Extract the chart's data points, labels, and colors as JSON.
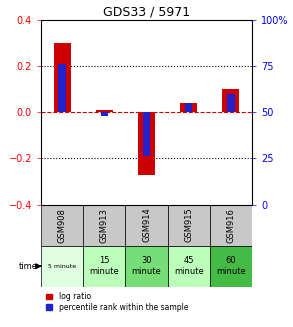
{
  "title": "GDS33 / 5971",
  "categories": [
    "GSM908",
    "GSM913",
    "GSM914",
    "GSM915",
    "GSM916"
  ],
  "time_labels_top": [
    "5 minute",
    "15\nminute",
    "30\nminute",
    "45\nminute",
    "60\nminute"
  ],
  "time_labels_small": [
    true,
    false,
    false,
    false,
    false
  ],
  "log_ratios": [
    0.3,
    0.01,
    -0.27,
    0.04,
    0.1
  ],
  "percentile_ranks": [
    76,
    48,
    26,
    55,
    60
  ],
  "bar_width": 0.4,
  "ylim_left": [
    -0.4,
    0.4
  ],
  "ylim_right": [
    0,
    100
  ],
  "yticks_left": [
    -0.4,
    -0.2,
    0.0,
    0.2,
    0.4
  ],
  "yticks_right": [
    0,
    25,
    50,
    75,
    100
  ],
  "bar_color_red": "#cc0000",
  "bar_color_blue": "#2222cc",
  "zero_line_color": "#cc0000",
  "dotted_line_color": "#000000",
  "bg_color": "#ffffff",
  "cell_color_gray": "#c8c8c8",
  "cell_colors_bottom": [
    "#e0ffe0",
    "#bbffbb",
    "#77dd77",
    "#bbffbb",
    "#44bb44"
  ],
  "legend_log_ratio_color": "#cc0000",
  "legend_percentile_color": "#2222cc"
}
